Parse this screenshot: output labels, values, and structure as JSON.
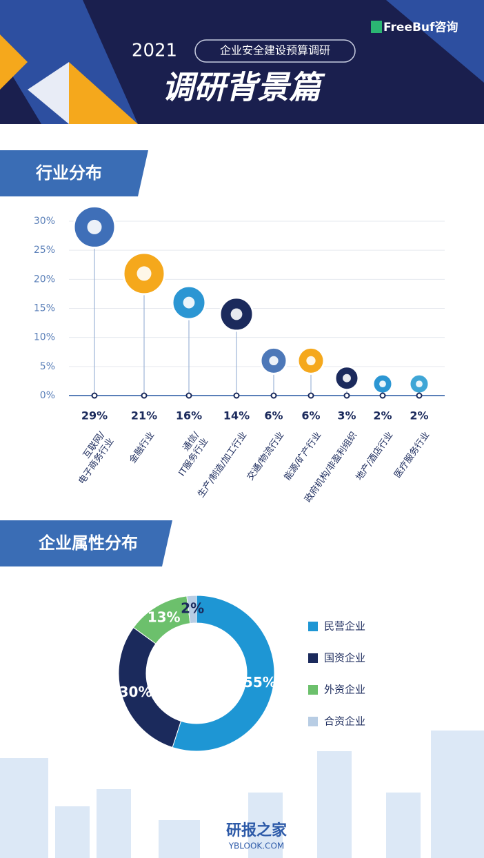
{
  "header": {
    "brand": "FreeBuf咨询",
    "year": "2021",
    "subtitle": "企业安全建设预算调研",
    "title": "调研背景篇"
  },
  "chart_data": [
    {
      "type": "lollipop",
      "title": "行业分布",
      "categories": [
        "互联网/\n电子商务行业",
        "金融行业",
        "通信/\nIT服务行业",
        "生产/制造/加工行业",
        "交通/物流行业",
        "能源/矿产行业",
        "政府机构/非盈利组织",
        "地产/酒店行业",
        "医疗服务行业"
      ],
      "values": [
        29,
        21,
        16,
        14,
        6,
        6,
        3,
        2,
        2
      ],
      "value_labels": [
        "29%",
        "21%",
        "16%",
        "14%",
        "6%",
        "6%",
        "3%",
        "2%",
        "2%"
      ],
      "colors": [
        "#3f6fb8",
        "#f5a81c",
        "#2b96d3",
        "#1b2a5c",
        "#4d78b8",
        "#f5a81c",
        "#1b2a5c",
        "#2b96d3",
        "#3fa6d6"
      ],
      "ylim": [
        0,
        30
      ],
      "yticks": [
        {
          "value": 0,
          "label": "0%"
        },
        {
          "value": 5,
          "label": "5%"
        },
        {
          "value": 10,
          "label": "10%"
        },
        {
          "value": 15,
          "label": "15%"
        },
        {
          "value": 20,
          "label": "20%"
        },
        {
          "value": 25,
          "label": "25%"
        },
        {
          "value": 30,
          "label": "30%"
        }
      ],
      "grid": true
    },
    {
      "type": "donut",
      "title": "企业属性分布",
      "categories": [
        "民营企业",
        "国资企业",
        "外资企业",
        "合资企业"
      ],
      "values": [
        55,
        30,
        13,
        2
      ],
      "value_labels": [
        "55%",
        "30%",
        "13%",
        "2%"
      ],
      "colors": [
        "#1e96d4",
        "#1b2a5c",
        "#6cc06c",
        "#b8cde4"
      ]
    }
  ],
  "watermark": {
    "name": "研报之家",
    "site": "YBLOOK.COM"
  }
}
